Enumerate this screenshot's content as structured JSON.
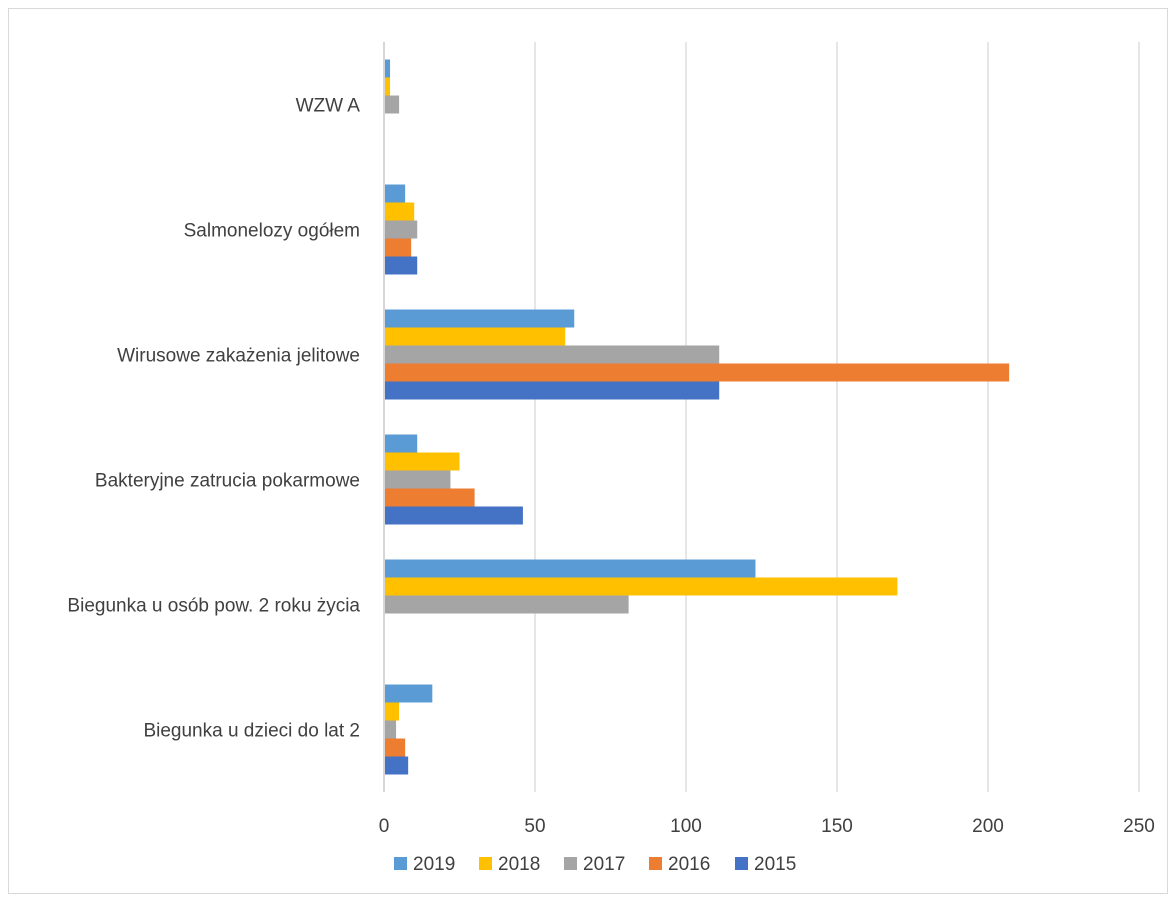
{
  "chart_data": {
    "type": "bar",
    "orientation": "horizontal",
    "title": "",
    "xlabel": "",
    "ylabel": "",
    "xlim": [
      0,
      250
    ],
    "xticks": [
      0,
      50,
      100,
      150,
      200,
      250
    ],
    "grid": "vertical",
    "legend_position": "bottom",
    "categories": [
      "WZW A",
      "Salmonelozy ogółem",
      "Wirusowe zakażenia jelitowe",
      "Bakteryjne zatrucia pokarmowe",
      "Biegunka u osób pow. 2 roku życia",
      "Biegunka u dzieci do lat 2"
    ],
    "series": [
      {
        "name": "2019",
        "color": "#5B9BD5",
        "values": [
          2,
          7,
          63,
          11,
          123,
          16
        ]
      },
      {
        "name": "2018",
        "color": "#FFC000",
        "values": [
          2,
          10,
          60,
          25,
          170,
          5
        ]
      },
      {
        "name": "2017",
        "color": "#A5A5A5",
        "values": [
          5,
          11,
          111,
          22,
          81,
          4
        ]
      },
      {
        "name": "2016",
        "color": "#ED7D31",
        "values": [
          0,
          9,
          207,
          30,
          0,
          7
        ]
      },
      {
        "name": "2015",
        "color": "#4472C4",
        "values": [
          0,
          11,
          111,
          46,
          0,
          8
        ]
      }
    ]
  }
}
